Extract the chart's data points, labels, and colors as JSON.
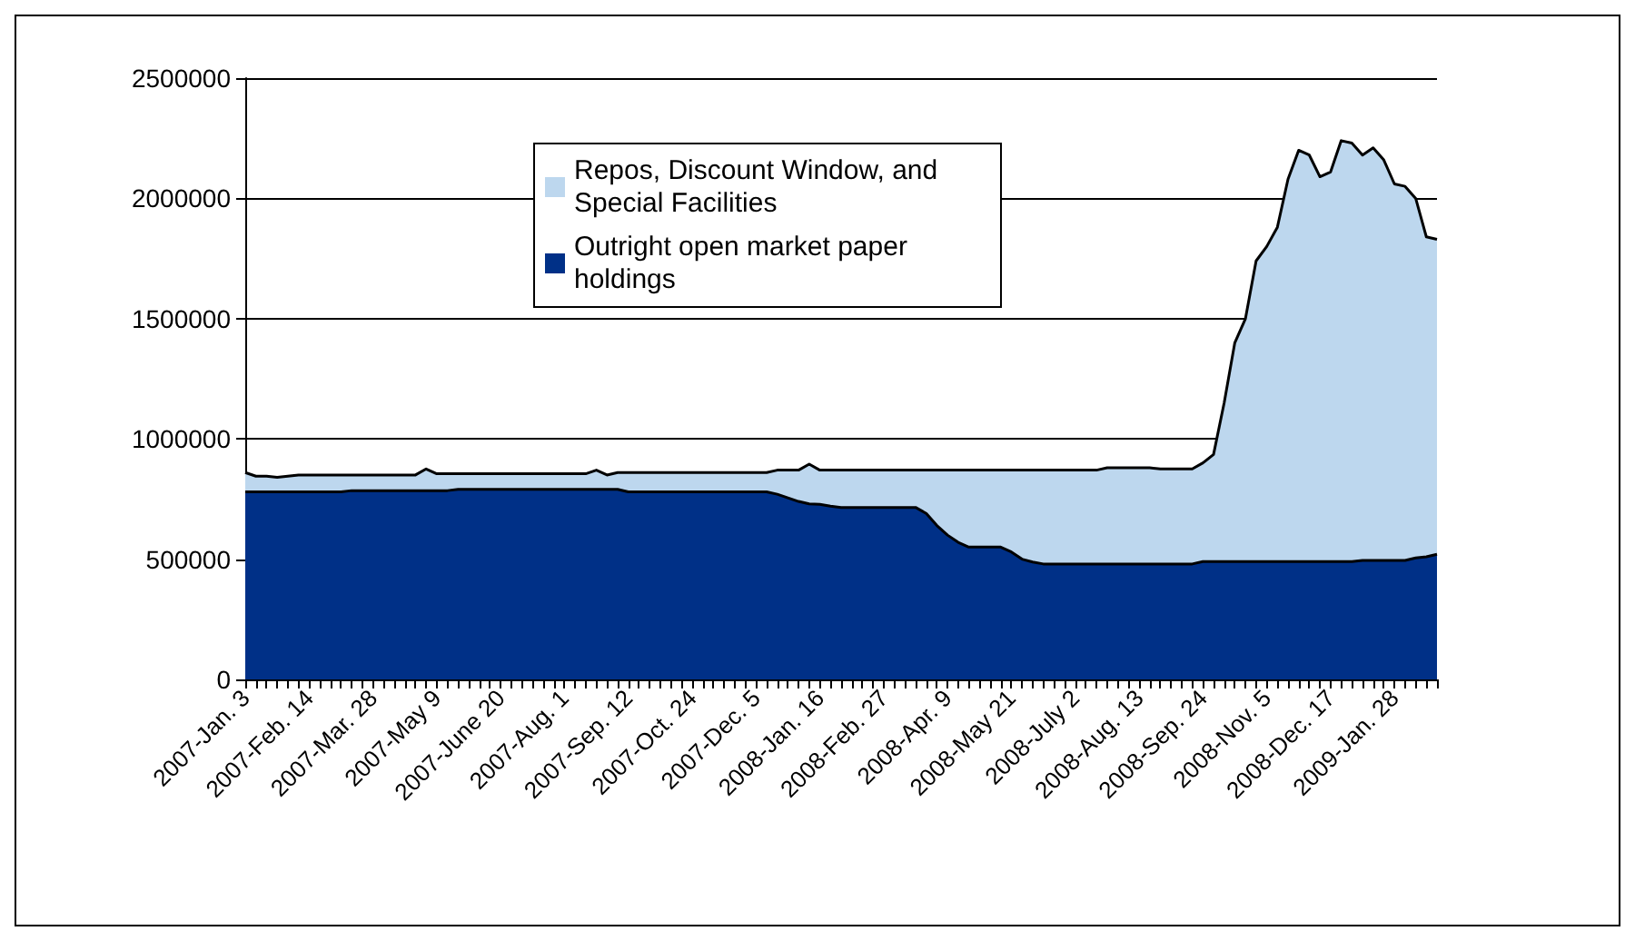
{
  "chart_data": {
    "type": "area",
    "stacked": true,
    "grid": "y",
    "legend": "top",
    "categories": [
      "2007-Jan. 3",
      null,
      null,
      null,
      null,
      null,
      "2007-Feb. 14",
      null,
      null,
      null,
      null,
      null,
      "2007-Mar. 28",
      null,
      null,
      null,
      null,
      null,
      "2007-May 9",
      null,
      null,
      null,
      null,
      null,
      "2007-June 20",
      null,
      null,
      null,
      null,
      null,
      "2007-Aug. 1",
      null,
      null,
      null,
      null,
      null,
      "2007-Sep. 12",
      null,
      null,
      null,
      null,
      null,
      "2007-Oct. 24",
      null,
      null,
      null,
      null,
      null,
      "2007-Dec. 5",
      null,
      null,
      null,
      null,
      null,
      "2008-Jan. 16",
      null,
      null,
      null,
      null,
      null,
      "2008-Feb. 27",
      null,
      null,
      null,
      null,
      null,
      "2008-Apr. 9",
      null,
      null,
      null,
      null,
      null,
      "2008-May 21",
      null,
      null,
      null,
      null,
      null,
      "2008-July 2",
      null,
      null,
      null,
      null,
      null,
      "2008-Aug. 13",
      null,
      null,
      null,
      null,
      null,
      "2008-Sep. 24",
      null,
      null,
      null,
      null,
      null,
      "2008-Nov. 5",
      null,
      null,
      null,
      null,
      null,
      "2008-Dec. 17",
      null,
      null,
      null,
      null,
      null,
      "2009-Jan. 28",
      null,
      null,
      null,
      null
    ],
    "ylim": [
      0,
      2500000
    ],
    "yticks": [
      0,
      500000,
      1000000,
      1500000,
      2000000,
      2500000
    ],
    "series": [
      {
        "name": "Outright open market paper holdings",
        "color": "#003087",
        "values": [
          780000,
          780000,
          780000,
          780000,
          780000,
          780000,
          780000,
          780000,
          780000,
          780000,
          785000,
          785000,
          785000,
          785000,
          785000,
          785000,
          785000,
          785000,
          785000,
          785000,
          790000,
          790000,
          790000,
          790000,
          790000,
          790000,
          790000,
          790000,
          790000,
          790000,
          790000,
          790000,
          790000,
          790000,
          790000,
          790000,
          780000,
          780000,
          780000,
          780000,
          780000,
          780000,
          780000,
          780000,
          780000,
          780000,
          780000,
          780000,
          780000,
          780000,
          770000,
          755000,
          740000,
          730000,
          728000,
          720000,
          715000,
          715000,
          715000,
          715000,
          715000,
          715000,
          715000,
          715000,
          690000,
          640000,
          600000,
          570000,
          550000,
          550000,
          550000,
          550000,
          530000,
          500000,
          488000,
          480000,
          480000,
          480000,
          480000,
          480000,
          480000,
          480000,
          480000,
          480000,
          480000,
          480000,
          480000,
          480000,
          480000,
          480000,
          490000,
          490000,
          490000,
          490000,
          490000,
          490000,
          490000,
          490000,
          490000,
          490000,
          490000,
          490000,
          490000,
          490000,
          490000,
          495000,
          495000,
          495000,
          495000,
          495000,
          505000,
          510000,
          520000
        ]
      },
      {
        "name": "Repos, Discount Window, and Special Facilities",
        "color": "#bdd7ee",
        "values": [
          80000,
          65000,
          65000,
          60000,
          65000,
          70000,
          70000,
          70000,
          70000,
          70000,
          65000,
          65000,
          65000,
          65000,
          65000,
          65000,
          65000,
          90000,
          70000,
          70000,
          65000,
          65000,
          65000,
          65000,
          65000,
          65000,
          65000,
          65000,
          65000,
          65000,
          65000,
          65000,
          65000,
          80000,
          60000,
          70000,
          80000,
          80000,
          80000,
          80000,
          80000,
          80000,
          80000,
          80000,
          80000,
          80000,
          80000,
          80000,
          80000,
          80000,
          100000,
          115000,
          130000,
          165000,
          142000,
          150000,
          155000,
          155000,
          155000,
          155000,
          155000,
          155000,
          155000,
          155000,
          180000,
          230000,
          270000,
          300000,
          320000,
          320000,
          320000,
          320000,
          340000,
          370000,
          382000,
          390000,
          390000,
          390000,
          390000,
          390000,
          390000,
          400000,
          400000,
          400000,
          400000,
          400000,
          395000,
          395000,
          395000,
          395000,
          410000,
          445000,
          660000,
          910000,
          1010000,
          1250000,
          1310000,
          1390000,
          1590000,
          1710000,
          1690000,
          1600000,
          1620000,
          1750000,
          1740000,
          1685000,
          1715000,
          1665000,
          1565000,
          1555000,
          1495000,
          1330000,
          1310000
        ]
      }
    ]
  }
}
